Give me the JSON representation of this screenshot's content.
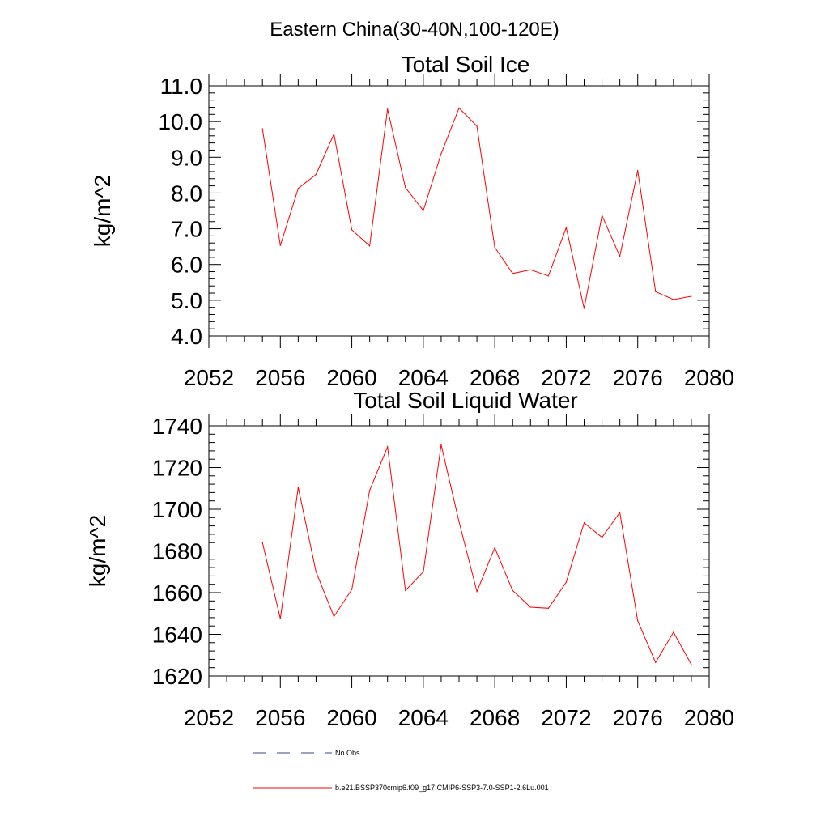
{
  "figure": {
    "title": "Eastern China(30-40N,100-120E)"
  },
  "chart_data": [
    {
      "type": "line",
      "title": "Total Soil Ice",
      "xlabel": "",
      "ylabel": "kg/m^2",
      "xlim": [
        2052,
        2080
      ],
      "ylim": [
        4.0,
        11.0
      ],
      "xticks": [
        2052,
        2056,
        2060,
        2064,
        2068,
        2072,
        2076,
        2080
      ],
      "yticks": [
        4.0,
        5.0,
        6.0,
        7.0,
        8.0,
        9.0,
        10.0,
        11.0
      ],
      "ytick_labels": [
        "4.0",
        "5.0",
        "6.0",
        "7.0",
        "8.0",
        "9.0",
        "10.0",
        "11.0"
      ],
      "grid": false,
      "series": [
        {
          "name": "b.e21.BSSP370cmip6.f09_g17.CMIP6-SSP3-7.0-SSP1-2.6Lu.001",
          "color": "#ff0000",
          "x": [
            2055,
            2056,
            2057,
            2058,
            2059,
            2060,
            2061,
            2062,
            2063,
            2064,
            2065,
            2066,
            2067,
            2068,
            2069,
            2070,
            2071,
            2072,
            2073,
            2074,
            2075,
            2076,
            2077,
            2078,
            2079
          ],
          "y": [
            9.8,
            6.53,
            8.13,
            8.52,
            9.65,
            6.97,
            6.52,
            10.35,
            8.15,
            7.51,
            9.1,
            10.38,
            9.87,
            6.48,
            5.75,
            5.85,
            5.68,
            7.03,
            4.77,
            7.37,
            6.23,
            8.63,
            5.24,
            5.02,
            5.11
          ]
        }
      ]
    },
    {
      "type": "line",
      "title": "Total Soil Liquid Water",
      "xlabel": "",
      "ylabel": "kg/m^2",
      "xlim": [
        2052,
        2080
      ],
      "ylim": [
        1620,
        1740
      ],
      "xticks": [
        2052,
        2056,
        2060,
        2064,
        2068,
        2072,
        2076,
        2080
      ],
      "yticks": [
        1620,
        1640,
        1660,
        1680,
        1700,
        1720,
        1740
      ],
      "ytick_labels": [
        "1620",
        "1640",
        "1660",
        "1680",
        "1700",
        "1720",
        "1740"
      ],
      "grid": false,
      "series": [
        {
          "name": "b.e21.BSSP370cmip6.f09_g17.CMIP6-SSP3-7.0-SSP1-2.6Lu.001",
          "color": "#ff0000",
          "x": [
            2055,
            2056,
            2057,
            2058,
            2059,
            2060,
            2061,
            2062,
            2063,
            2064,
            2065,
            2066,
            2067,
            2068,
            2069,
            2070,
            2071,
            2072,
            2073,
            2074,
            2075,
            2076,
            2077,
            2078,
            2079
          ],
          "y": [
            1684,
            1647.5,
            1710.5,
            1670,
            1648.5,
            1661.5,
            1709,
            1730,
            1661,
            1670,
            1731,
            1694,
            1660.5,
            1681.5,
            1661,
            1653,
            1652.5,
            1665,
            1693.5,
            1686.5,
            1698.5,
            1646.5,
            1626.5,
            1641,
            1625.5
          ]
        }
      ]
    }
  ],
  "legend": {
    "placement": "bottom",
    "items": [
      {
        "label": "No Obs",
        "color": "#3a4a8c",
        "style": "dashed"
      },
      {
        "label": "b.e21.BSSP370cmip6.f09_g17.CMIP6-SSP3-7.0-SSP1-2.6Lu.001",
        "color": "#ff0000",
        "style": "solid"
      }
    ]
  }
}
